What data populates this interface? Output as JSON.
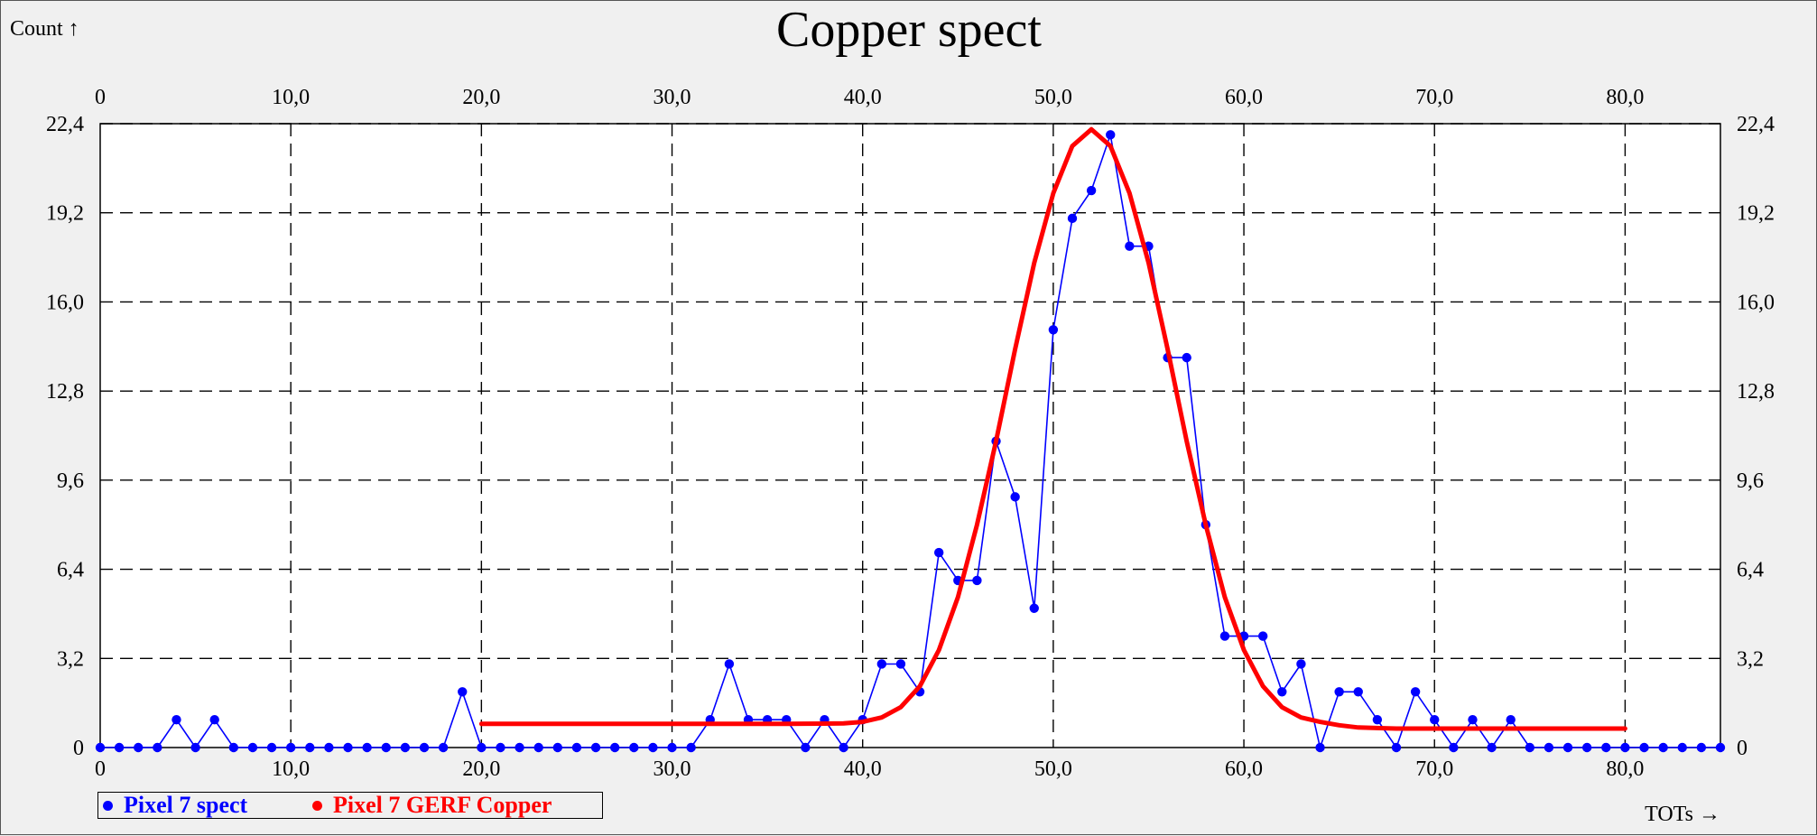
{
  "chart_data": {
    "type": "line",
    "title": "Copper spect",
    "ylabel": "Count ↑",
    "xlabel": "TOTs →",
    "xlim": [
      0,
      85
    ],
    "ylim": [
      0,
      22.4
    ],
    "x_ticks": [
      "0",
      "10,0",
      "20,0",
      "30,0",
      "40,0",
      "50,0",
      "60,0",
      "70,0",
      "80,0"
    ],
    "x_tick_values": [
      0,
      10,
      20,
      30,
      40,
      50,
      60,
      70,
      80
    ],
    "y_ticks": [
      "0",
      "3,2",
      "6,4",
      "9,6",
      "12,8",
      "16,0",
      "19,2",
      "22,4"
    ],
    "y_tick_values": [
      0,
      3.2,
      6.4,
      9.6,
      12.8,
      16.0,
      19.2,
      22.4
    ],
    "grid": true,
    "legend_position": "bottom-left",
    "series": [
      {
        "name": "Pixel 7 spect",
        "color": "#0000ff",
        "markers": true,
        "x": [
          0,
          1,
          2,
          3,
          4,
          5,
          6,
          7,
          8,
          9,
          10,
          11,
          12,
          13,
          14,
          15,
          16,
          17,
          18,
          19,
          20,
          21,
          22,
          23,
          24,
          25,
          26,
          27,
          28,
          29,
          30,
          31,
          32,
          33,
          34,
          35,
          36,
          37,
          38,
          39,
          40,
          41,
          42,
          43,
          44,
          45,
          46,
          47,
          48,
          49,
          50,
          51,
          52,
          53,
          54,
          55,
          56,
          57,
          58,
          59,
          60,
          61,
          62,
          63,
          64,
          65,
          66,
          67,
          68,
          69,
          70,
          71,
          72,
          73,
          74,
          75,
          76,
          77,
          78,
          79,
          80,
          81,
          82,
          83,
          84,
          85
        ],
        "y": [
          0,
          0,
          0,
          0,
          1,
          0,
          1,
          0,
          0,
          0,
          0,
          0,
          0,
          0,
          0,
          0,
          0,
          0,
          0,
          2,
          0,
          0,
          0,
          0,
          0,
          0,
          0,
          0,
          0,
          0,
          0,
          0,
          1,
          3,
          1,
          1,
          1,
          0,
          1,
          0,
          1,
          3,
          3,
          2,
          7,
          6,
          6,
          11,
          9,
          5,
          15,
          19,
          20,
          22,
          18,
          18,
          14,
          14,
          8,
          4,
          4,
          4,
          2,
          3,
          0,
          2,
          2,
          1,
          0,
          2,
          1,
          0,
          1,
          0,
          1,
          0,
          0,
          0,
          0,
          0,
          0,
          0,
          0,
          0,
          0,
          0
        ]
      },
      {
        "name": "Pixel 7 GERF Copper",
        "color": "#ff0000",
        "markers": false,
        "x": [
          20,
          22,
          24,
          26,
          28,
          30,
          32,
          34,
          36,
          38,
          39,
          40,
          41,
          42,
          43,
          44,
          45,
          46,
          47,
          48,
          49,
          50,
          51,
          52,
          53,
          54,
          55,
          56,
          57,
          58,
          59,
          60,
          61,
          62,
          63,
          64,
          65,
          66,
          68,
          70,
          72,
          74,
          76,
          78,
          80
        ],
        "y": [
          0.85,
          0.85,
          0.85,
          0.85,
          0.85,
          0.85,
          0.85,
          0.85,
          0.85,
          0.86,
          0.87,
          0.92,
          1.08,
          1.45,
          2.2,
          3.5,
          5.4,
          8.0,
          11.0,
          14.3,
          17.4,
          19.9,
          21.6,
          22.2,
          21.6,
          19.9,
          17.4,
          14.3,
          11.0,
          8.0,
          5.4,
          3.5,
          2.2,
          1.45,
          1.08,
          0.92,
          0.8,
          0.72,
          0.68,
          0.68,
          0.68,
          0.68,
          0.68,
          0.68,
          0.68
        ]
      }
    ]
  }
}
